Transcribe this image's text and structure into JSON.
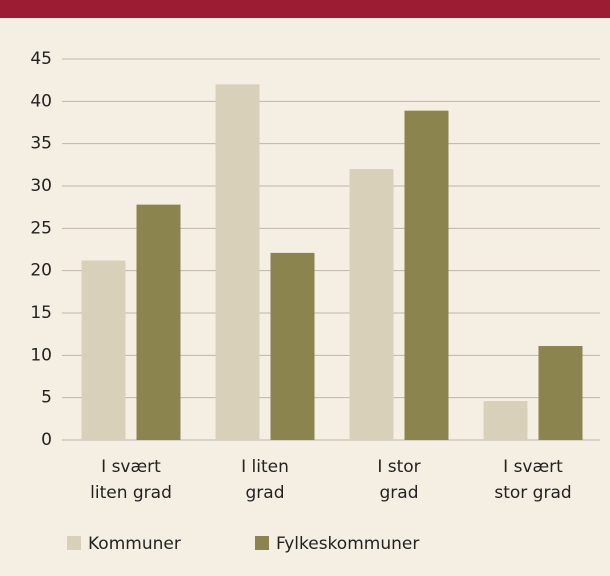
{
  "chart_data": {
    "type": "bar",
    "categories": [
      [
        "I svært",
        "liten grad"
      ],
      [
        "I liten",
        "grad"
      ],
      [
        "I stor",
        "grad"
      ],
      [
        "I svært",
        "stor grad"
      ]
    ],
    "series": [
      {
        "name": "Kommuner",
        "color": "#d9d0b9",
        "values": [
          21.2,
          42,
          32,
          4.6
        ]
      },
      {
        "name": "Fylkeskommuner",
        "color": "#8c844f",
        "values": [
          27.8,
          22.1,
          38.9,
          11.1
        ]
      }
    ],
    "ylim": [
      0,
      45
    ],
    "yticks": [
      0,
      5,
      10,
      15,
      20,
      25,
      30,
      35,
      40,
      45
    ],
    "grid": true,
    "legend": "bottom"
  }
}
